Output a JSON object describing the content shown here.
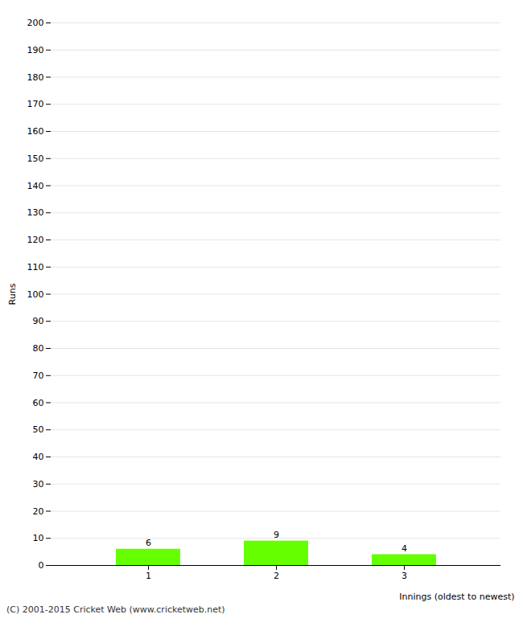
{
  "chart_data": {
    "type": "bar",
    "categories": [
      "1",
      "2",
      "3"
    ],
    "values": [
      6,
      9,
      4
    ],
    "color": "#66ff00",
    "xlabel": "Innings (oldest to newest)",
    "ylabel": "Runs",
    "ylim": [
      0,
      200
    ],
    "yticks": [
      0,
      10,
      20,
      30,
      40,
      50,
      60,
      70,
      80,
      90,
      100,
      110,
      120,
      130,
      140,
      150,
      160,
      170,
      180,
      190,
      200
    ],
    "grid": true,
    "data_labels": true,
    "annotations": [
      "(C) 2001-2015 Cricket Web (www.cricketweb.net)"
    ]
  }
}
